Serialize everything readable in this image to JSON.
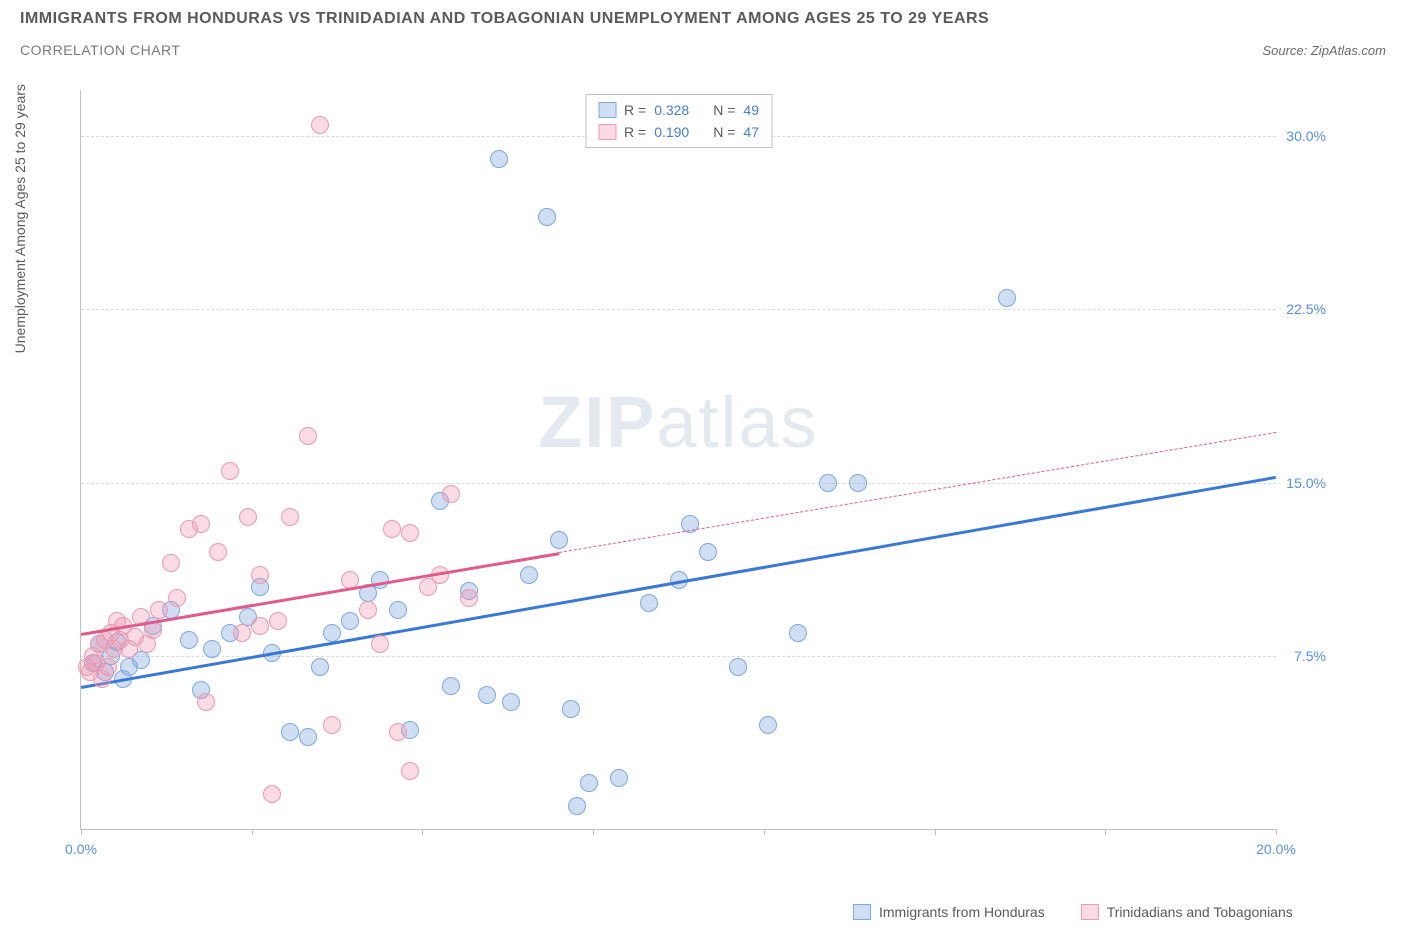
{
  "header": {
    "title": "IMMIGRANTS FROM HONDURAS VS TRINIDADIAN AND TOBAGONIAN UNEMPLOYMENT AMONG AGES 25 TO 29 YEARS",
    "subtitle": "CORRELATION CHART",
    "source_prefix": "Source: ",
    "source_name": "ZipAtlas.com"
  },
  "chart": {
    "type": "scatter",
    "xlim": [
      0,
      20
    ],
    "ylim": [
      0,
      32
    ],
    "x_ticks": [
      0,
      2.857,
      5.714,
      8.571,
      11.428,
      14.285,
      17.143,
      20
    ],
    "x_tick_labels": {
      "0": "0.0%",
      "20": "20.0%"
    },
    "y_ticks": [
      7.5,
      15.0,
      22.5,
      30.0
    ],
    "y_tick_labels": [
      "7.5%",
      "15.0%",
      "22.5%",
      "30.0%"
    ],
    "y_axis_label": "Unemployment Among Ages 25 to 29 years",
    "grid_color": "#dadada",
    "background_color": "#ffffff",
    "axis_color": "#c0c0c0",
    "series": [
      {
        "name": "Immigrants from Honduras",
        "color_fill": "rgba(120,160,220,0.35)",
        "color_stroke": "#7fa8dd",
        "trend_color": "#3a78d6",
        "r": "0.328",
        "n": "49",
        "trend": {
          "x1": 0,
          "y1": 6.2,
          "x2": 20,
          "y2": 15.3
        },
        "points": [
          [
            0.2,
            7.2
          ],
          [
            0.3,
            8.0
          ],
          [
            0.4,
            6.8
          ],
          [
            0.5,
            7.5
          ],
          [
            0.6,
            8.1
          ],
          [
            0.7,
            6.5
          ],
          [
            0.8,
            7.0
          ],
          [
            1.0,
            7.3
          ],
          [
            1.2,
            8.8
          ],
          [
            1.5,
            9.5
          ],
          [
            1.8,
            8.2
          ],
          [
            2.0,
            6.0
          ],
          [
            2.2,
            7.8
          ],
          [
            2.5,
            8.5
          ],
          [
            2.8,
            9.2
          ],
          [
            3.0,
            10.5
          ],
          [
            3.2,
            7.6
          ],
          [
            3.5,
            4.2
          ],
          [
            3.8,
            4.0
          ],
          [
            4.0,
            7.0
          ],
          [
            4.2,
            8.5
          ],
          [
            4.5,
            9.0
          ],
          [
            4.8,
            10.2
          ],
          [
            5.0,
            10.8
          ],
          [
            5.3,
            9.5
          ],
          [
            5.5,
            4.3
          ],
          [
            6.0,
            14.2
          ],
          [
            6.2,
            6.2
          ],
          [
            6.5,
            10.3
          ],
          [
            6.8,
            5.8
          ],
          [
            7.0,
            29.0
          ],
          [
            7.2,
            5.5
          ],
          [
            7.5,
            11.0
          ],
          [
            7.8,
            26.5
          ],
          [
            8.0,
            12.5
          ],
          [
            8.2,
            5.2
          ],
          [
            8.5,
            2.0
          ],
          [
            9.0,
            2.2
          ],
          [
            9.5,
            9.8
          ],
          [
            10.0,
            10.8
          ],
          [
            10.2,
            13.2
          ],
          [
            10.5,
            12.0
          ],
          [
            11.0,
            7.0
          ],
          [
            11.5,
            4.5
          ],
          [
            12.0,
            8.5
          ],
          [
            12.5,
            15.0
          ],
          [
            13.0,
            15.0
          ],
          [
            15.5,
            23.0
          ],
          [
            8.3,
            1.0
          ]
        ]
      },
      {
        "name": "Trinidadians and Tobagonians",
        "color_fill": "rgba(240,150,175,0.35)",
        "color_stroke": "#e89bb2",
        "trend_color": "#e05a8a",
        "r": "0.190",
        "n": "47",
        "trend_solid": {
          "x1": 0,
          "y1": 8.5,
          "x2": 8,
          "y2": 12.0
        },
        "trend_dash": {
          "x1": 8,
          "y1": 12.0,
          "x2": 20,
          "y2": 17.2
        },
        "points": [
          [
            0.1,
            7.0
          ],
          [
            0.2,
            7.5
          ],
          [
            0.3,
            8.0
          ],
          [
            0.4,
            8.2
          ],
          [
            0.5,
            8.5
          ],
          [
            0.6,
            9.0
          ],
          [
            0.7,
            8.8
          ],
          [
            0.8,
            7.8
          ],
          [
            0.9,
            8.3
          ],
          [
            1.0,
            9.2
          ],
          [
            1.1,
            8.0
          ],
          [
            1.2,
            8.6
          ],
          [
            1.3,
            9.5
          ],
          [
            1.5,
            11.5
          ],
          [
            1.6,
            10.0
          ],
          [
            1.8,
            13.0
          ],
          [
            2.0,
            13.2
          ],
          [
            2.1,
            5.5
          ],
          [
            2.3,
            12.0
          ],
          [
            2.5,
            15.5
          ],
          [
            2.8,
            13.5
          ],
          [
            3.0,
            11.0
          ],
          [
            3.2,
            1.5
          ],
          [
            3.5,
            13.5
          ],
          [
            3.8,
            17.0
          ],
          [
            4.0,
            30.5
          ],
          [
            4.2,
            4.5
          ],
          [
            4.5,
            10.8
          ],
          [
            4.8,
            9.5
          ],
          [
            5.0,
            8.0
          ],
          [
            5.2,
            13.0
          ],
          [
            5.5,
            12.8
          ],
          [
            5.8,
            10.5
          ],
          [
            6.0,
            11.0
          ],
          [
            6.2,
            14.5
          ],
          [
            6.5,
            10.0
          ],
          [
            5.3,
            4.2
          ],
          [
            5.5,
            2.5
          ],
          [
            2.7,
            8.5
          ],
          [
            3.0,
            8.8
          ],
          [
            3.3,
            9.0
          ],
          [
            0.15,
            6.8
          ],
          [
            0.25,
            7.2
          ],
          [
            0.35,
            6.5
          ],
          [
            0.45,
            7.0
          ],
          [
            0.55,
            7.8
          ],
          [
            0.65,
            8.2
          ]
        ]
      }
    ],
    "legend_box": {
      "r_label": "R =",
      "n_label": "N ="
    },
    "watermark": {
      "zip": "ZIP",
      "rest": "atlas"
    }
  }
}
